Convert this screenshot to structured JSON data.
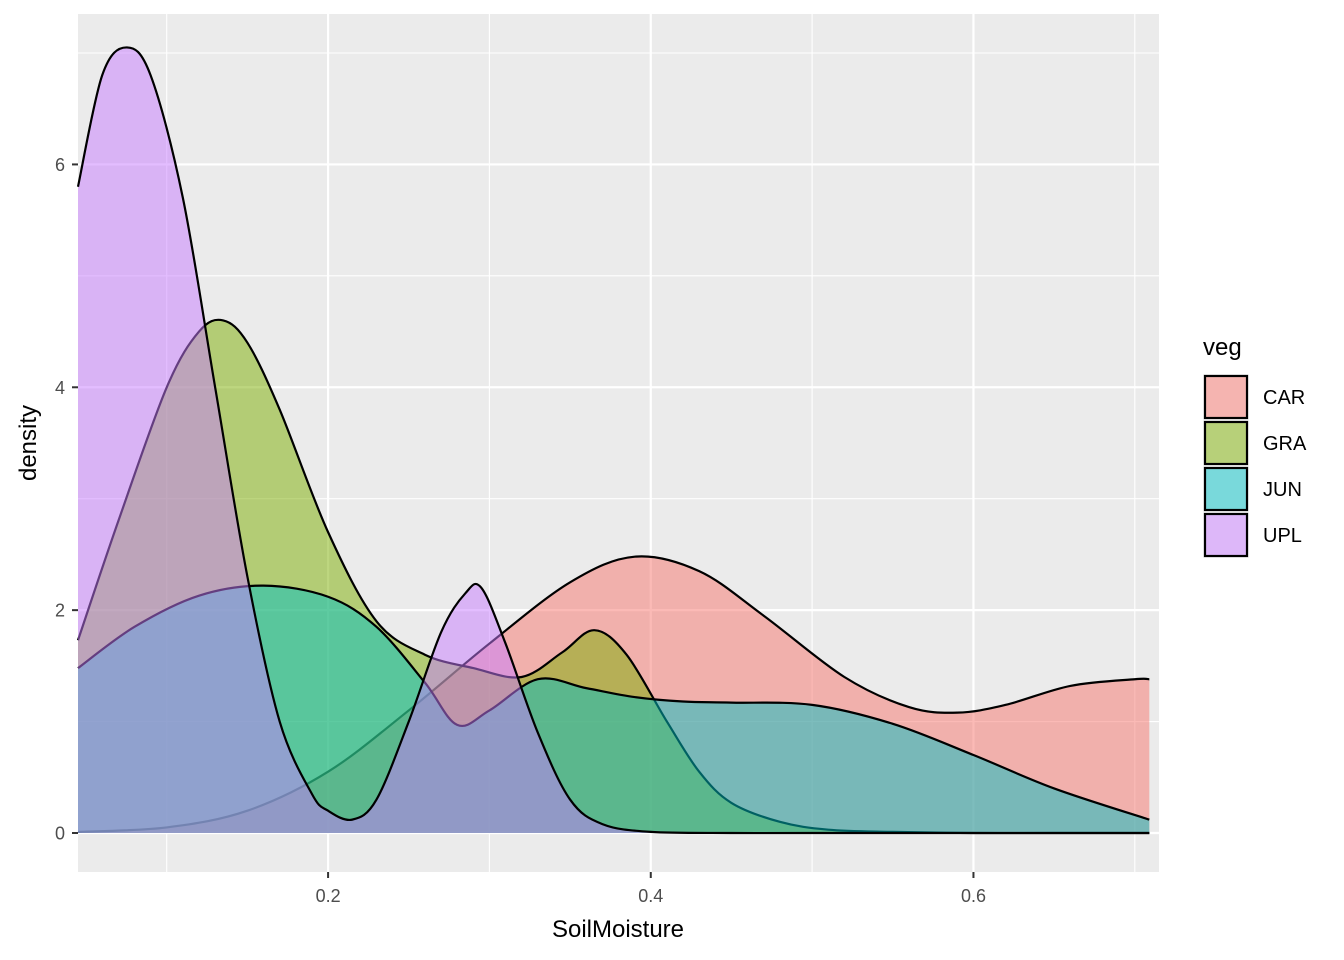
{
  "chart_data": {
    "type": "area",
    "subtype": "density",
    "xlabel": "SoilMoisture",
    "ylabel": "density",
    "xlim": [
      0.045,
      0.715
    ],
    "ylim": [
      -0.35,
      7.35
    ],
    "x_ticks": [
      0.2,
      0.4,
      0.6
    ],
    "x_tick_labels": [
      "0.2",
      "0.4",
      "0.6"
    ],
    "y_ticks": [
      0,
      2,
      4,
      6
    ],
    "y_tick_labels": [
      "0",
      "2",
      "4",
      "6"
    ],
    "grid": true,
    "legend_position": "right",
    "legend_title": "veg",
    "fill_alpha": 0.5,
    "series": [
      {
        "name": "CAR",
        "color": "#F8766D",
        "x": [
          0.045,
          0.1,
          0.15,
          0.2,
          0.25,
          0.3,
          0.35,
          0.39,
          0.43,
          0.47,
          0.52,
          0.56,
          0.59,
          0.62,
          0.66,
          0.7,
          0.709
        ],
        "y": [
          0.01,
          0.05,
          0.2,
          0.55,
          1.1,
          1.7,
          2.25,
          2.48,
          2.35,
          1.95,
          1.4,
          1.13,
          1.08,
          1.15,
          1.32,
          1.38,
          1.38
        ]
      },
      {
        "name": "GRA",
        "color": "#7CAE00",
        "x": [
          0.045,
          0.07,
          0.1,
          0.12,
          0.135,
          0.15,
          0.17,
          0.2,
          0.23,
          0.26,
          0.29,
          0.32,
          0.345,
          0.365,
          0.385,
          0.41,
          0.43,
          0.45,
          0.48,
          0.51,
          0.55,
          0.6,
          0.65,
          0.709
        ],
        "y": [
          1.73,
          2.8,
          4.0,
          4.5,
          4.6,
          4.4,
          3.8,
          2.7,
          1.9,
          1.6,
          1.48,
          1.4,
          1.62,
          1.82,
          1.6,
          1.0,
          0.55,
          0.27,
          0.1,
          0.03,
          0.01,
          0.0,
          0.0,
          0.0
        ]
      },
      {
        "name": "JUN",
        "color": "#00BFC4",
        "x": [
          0.045,
          0.08,
          0.12,
          0.16,
          0.2,
          0.23,
          0.26,
          0.28,
          0.3,
          0.33,
          0.36,
          0.39,
          0.42,
          0.45,
          0.5,
          0.55,
          0.6,
          0.65,
          0.709
        ],
        "y": [
          1.48,
          1.85,
          2.13,
          2.22,
          2.12,
          1.85,
          1.35,
          0.97,
          1.1,
          1.38,
          1.3,
          1.22,
          1.18,
          1.17,
          1.15,
          0.98,
          0.7,
          0.4,
          0.12
        ]
      },
      {
        "name": "UPL",
        "color": "#C77CFF",
        "x": [
          0.045,
          0.06,
          0.075,
          0.09,
          0.11,
          0.13,
          0.15,
          0.17,
          0.19,
          0.2,
          0.215,
          0.23,
          0.25,
          0.27,
          0.285,
          0.295,
          0.31,
          0.33,
          0.35,
          0.37,
          0.4,
          0.45,
          0.5,
          0.6,
          0.709
        ],
        "y": [
          5.8,
          6.8,
          7.05,
          6.8,
          5.7,
          4.0,
          2.3,
          1.0,
          0.35,
          0.2,
          0.12,
          0.3,
          1.0,
          1.8,
          2.15,
          2.2,
          1.7,
          0.9,
          0.3,
          0.08,
          0.01,
          0.0,
          0.0,
          0.0,
          0.0
        ]
      }
    ]
  }
}
